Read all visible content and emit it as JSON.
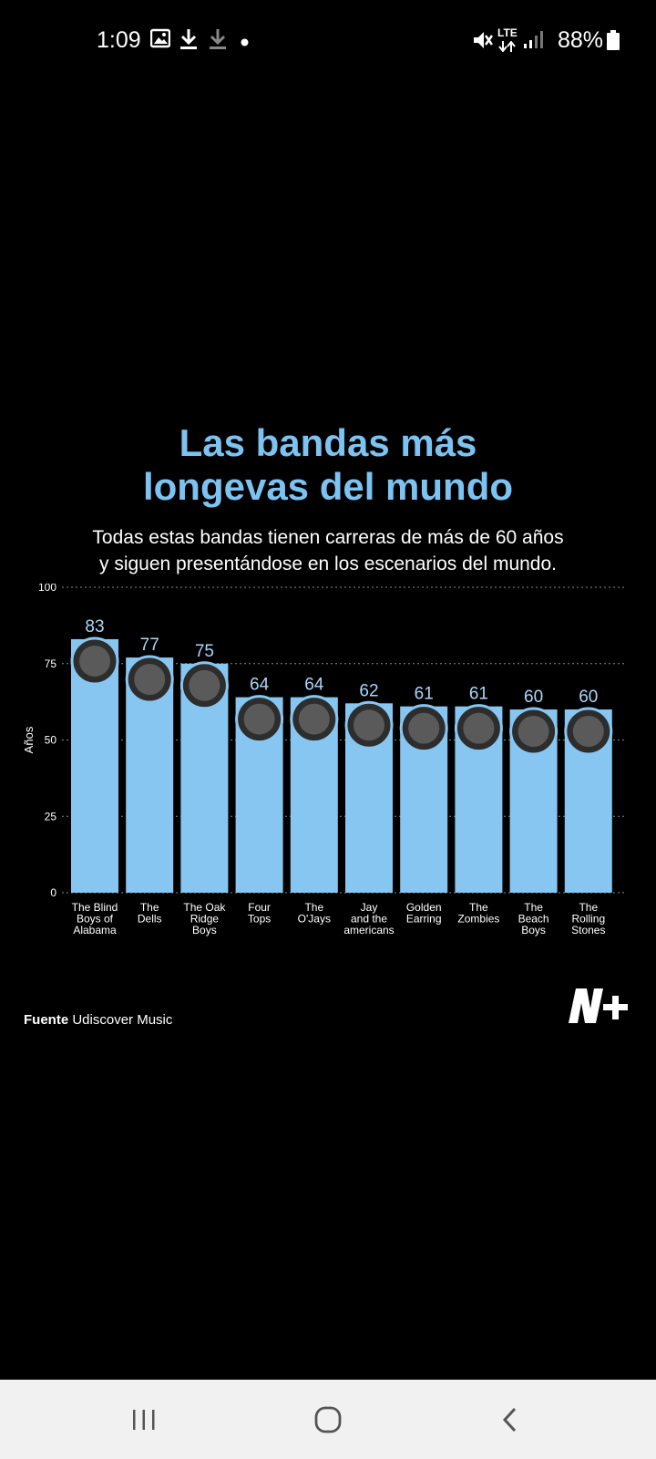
{
  "status_bar": {
    "time": "1:09",
    "network": "LTE",
    "battery": "88%"
  },
  "title_line1": "Las bandas más",
  "title_line2": "longevas del mundo",
  "subtitle_line1": "Todas estas bandas tienen carreras de más de 60 años",
  "subtitle_line2": "y siguen presentándose en los escenarios del mundo.",
  "source_label": "Fuente",
  "source_value": "Udiscover Music",
  "colors": {
    "bar": "#87c6f1",
    "title": "#7cc3f2",
    "value_label": "#a9d7f7"
  },
  "chart_data": {
    "type": "bar",
    "ylabel": "Años",
    "ylim": [
      0,
      100
    ],
    "yticks": [
      0,
      25,
      50,
      75,
      100
    ],
    "grid": "dashed horizontal",
    "categories": [
      [
        "The Blind",
        "Boys of",
        "Alabama"
      ],
      [
        "The",
        "Dells"
      ],
      [
        "The Oak",
        "Ridge",
        "Boys"
      ],
      [
        "Four",
        "Tops"
      ],
      [
        "The",
        "O'Jays"
      ],
      [
        "Jay",
        "and the",
        "americans"
      ],
      [
        "Golden",
        "Earring"
      ],
      [
        "The",
        "Zombies"
      ],
      [
        "The",
        "Beach",
        "Boys"
      ],
      [
        "The",
        "Rolling",
        "Stones"
      ]
    ],
    "values": [
      83,
      77,
      75,
      64,
      64,
      62,
      61,
      61,
      60,
      60
    ]
  }
}
